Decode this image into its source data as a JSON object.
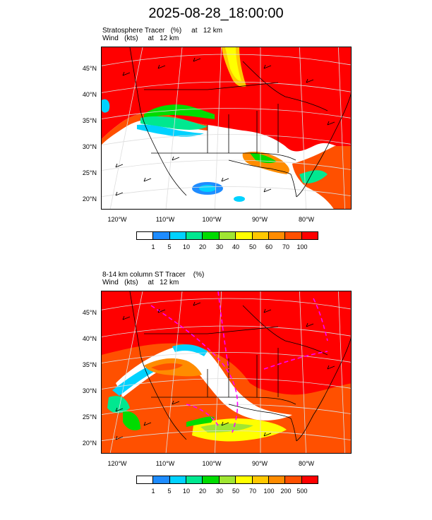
{
  "title": "2025-08-28_18:00:00",
  "panel1": {
    "label_line1": "Stratosphere Tracer   (%)     at   12 km",
    "label_line2": "Wind   (kts)     at   12 km",
    "colorbar": {
      "labels": [
        "1",
        "5",
        "10",
        "20",
        "30",
        "40",
        "50",
        "60",
        "70",
        "100"
      ],
      "colors": [
        "#ffffff",
        "#1e8cff",
        "#00d2ff",
        "#00e890",
        "#00dc00",
        "#a0e632",
        "#ffff00",
        "#ffc800",
        "#ff8c00",
        "#ff5000",
        "#ff0000"
      ]
    }
  },
  "panel2": {
    "label_line1": "8-14 km column ST Tracer    (%)",
    "label_line2": "Wind   (kts)     at   12 km",
    "colorbar": {
      "labels": [
        "1",
        "5",
        "10",
        "20",
        "30",
        "50",
        "70",
        "100",
        "200",
        "500"
      ],
      "colors": [
        "#ffffff",
        "#1e8cff",
        "#00d2ff",
        "#00e890",
        "#00dc00",
        "#a0e632",
        "#ffff00",
        "#ffc800",
        "#ff8c00",
        "#ff5000",
        "#ff0000"
      ]
    }
  },
  "axes": {
    "lat_labels": [
      "45°N",
      "40°N",
      "35°N",
      "30°N",
      "25°N",
      "20°N"
    ],
    "lon_labels": [
      "120°W",
      "110°W",
      "100°W",
      "90°W",
      "80°W"
    ]
  }
}
